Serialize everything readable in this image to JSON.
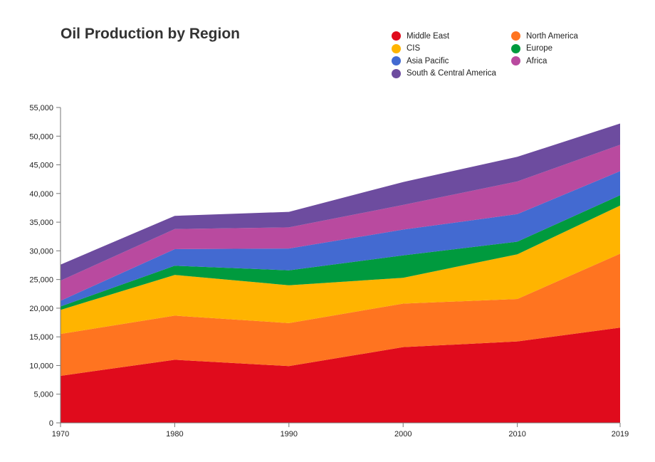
{
  "chart_data": {
    "type": "area",
    "title": "Oil Production by Region",
    "xlabel": "",
    "ylabel": "",
    "x": [
      1970,
      1980,
      1990,
      2000,
      2010,
      2019
    ],
    "x_tick_labels": [
      "1970",
      "1980",
      "1990",
      "2000",
      "2010",
      "2019"
    ],
    "ylim": [
      0,
      55000
    ],
    "y_ticks": [
      0,
      5000,
      10000,
      15000,
      20000,
      25000,
      30000,
      35000,
      40000,
      45000,
      50000,
      55000
    ],
    "y_tick_labels": [
      "0",
      "5,000",
      "10,000",
      "15,000",
      "20,000",
      "25,000",
      "30,000",
      "35,000",
      "40,000",
      "45,000",
      "50,000",
      "55,000"
    ],
    "stacked": true,
    "grid": false,
    "legend_position": "top-right",
    "series": [
      {
        "name": "Middle East",
        "color": "#e00b1c",
        "values": [
          8200,
          11000,
          9900,
          13200,
          14200,
          16600
        ]
      },
      {
        "name": "North America",
        "color": "#ff7420",
        "values": [
          7300,
          7700,
          7500,
          7600,
          7400,
          12900
        ]
      },
      {
        "name": "CIS",
        "color": "#ffb400",
        "values": [
          4200,
          7100,
          6600,
          4500,
          7800,
          8400
        ]
      },
      {
        "name": "Europe",
        "color": "#009a3e",
        "values": [
          600,
          1600,
          2600,
          3900,
          2200,
          1800
        ]
      },
      {
        "name": "Asia Pacific",
        "color": "#436ad1",
        "values": [
          1000,
          2900,
          3800,
          4500,
          4800,
          4200
        ]
      },
      {
        "name": "Africa",
        "color": "#b94a9f",
        "values": [
          3500,
          3500,
          3700,
          4300,
          5700,
          4600
        ]
      },
      {
        "name": "South & Central America",
        "color": "#6d4c9f",
        "values": [
          2800,
          2300,
          2700,
          4000,
          4300,
          3700
        ]
      }
    ]
  }
}
